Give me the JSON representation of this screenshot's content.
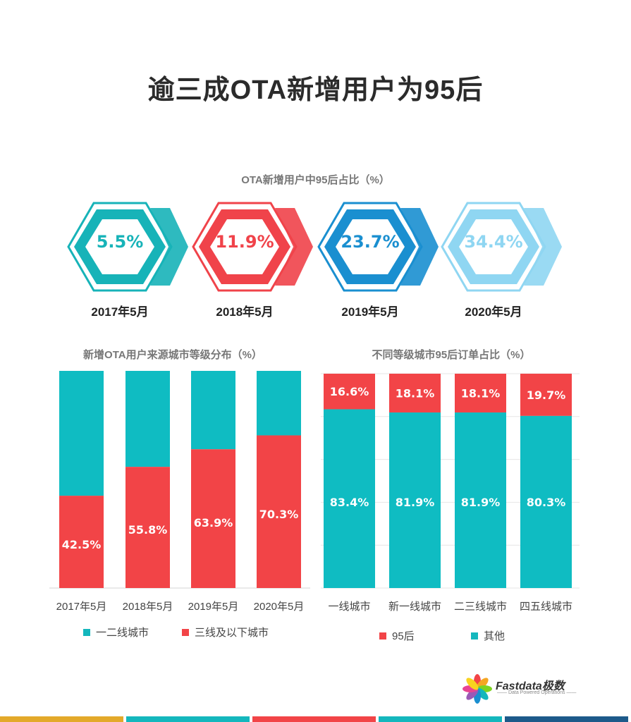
{
  "title": "逾三成OTA新增用户为95后",
  "hex_section": {
    "subtitle": "OTA新增用户中95后占比（%）",
    "items": [
      {
        "value": "5.5%",
        "year": "2017年5月",
        "color": "#17b3b8"
      },
      {
        "value": "11.9%",
        "year": "2018年5月",
        "color": "#f0434a"
      },
      {
        "value": "23.7%",
        "year": "2019年5月",
        "color": "#1a8fd0"
      },
      {
        "value": "34.4%",
        "year": "2020年5月",
        "color": "#8fd6f2"
      }
    ]
  },
  "colors": {
    "teal": "#14b7bd",
    "red": "#f24447",
    "bar_teal": "#0fbcc2"
  },
  "chart_data": [
    {
      "type": "bar",
      "title": "新增OTA用户来源城市等级分布（%）",
      "categories": [
        "2017年5月",
        "2018年5月",
        "2019年5月",
        "2020年5月"
      ],
      "series": [
        {
          "name": "一二线城市",
          "values": [
            57.5,
            44.2,
            36.1,
            29.7
          ]
        },
        {
          "name": "三线及以下城市",
          "values": [
            42.5,
            55.8,
            63.9,
            70.3
          ]
        }
      ],
      "data_labels": [
        "42.5%",
        "55.8%",
        "63.9%",
        "70.3%"
      ],
      "stacked": true,
      "ylim": [
        0,
        100
      ],
      "legend": "bottom"
    },
    {
      "type": "bar",
      "title": "不同等级城市95后订单占比（%）",
      "categories": [
        "一线城市",
        "新一线城市",
        "二三线城市",
        "四五线城市"
      ],
      "series": [
        {
          "name": "95后",
          "values": [
            16.6,
            18.1,
            18.1,
            19.7
          ],
          "labels": [
            "16.6%",
            "18.1%",
            "18.1%",
            "19.7%"
          ]
        },
        {
          "name": "其他",
          "values": [
            83.4,
            81.9,
            81.9,
            80.3
          ],
          "labels": [
            "83.4%",
            "81.9%",
            "81.9%",
            "80.3%"
          ]
        }
      ],
      "stacked": true,
      "ylim": [
        0,
        100
      ],
      "grid": true,
      "legend": "bottom"
    }
  ],
  "logo": {
    "name": "Fastdata极数",
    "tagline": "—— Data Powered Operations ——"
  },
  "footer_colors": [
    "#e3a92a",
    "#14b7bd",
    "#f24447",
    "#14b7bd",
    "#1d5a8a"
  ]
}
